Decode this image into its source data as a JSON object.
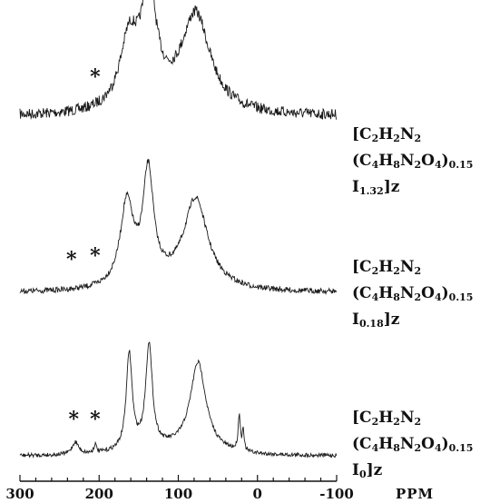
{
  "chart_data": {
    "type": "line",
    "title": "",
    "xlabel": "PPM",
    "xlim": [
      300,
      -100
    ],
    "x_ticks": [
      "300",
      "200",
      "100",
      "0",
      "-100"
    ],
    "x_tick_values": [
      300,
      200,
      100,
      0,
      -100
    ],
    "grid": false,
    "legend": "none",
    "marker_symbol": "*",
    "spectra": [
      {
        "label_lines": [
          "[C2H2N2",
          "(C4H8N2O4)0.15",
          "I1.32]z"
        ],
        "peaks": [
          {
            "ppm": 162,
            "height": 0.6
          },
          {
            "ppm": 137,
            "height": 1.0
          },
          {
            "ppm": 78,
            "height": 0.85
          }
        ],
        "asterisk_ppm": [
          205
        ]
      },
      {
        "label_lines": [
          "[C2H2N2",
          "(C4H8N2O4)0.15",
          "I0.18]z"
        ],
        "peaks": [
          {
            "ppm": 165,
            "height": 0.75
          },
          {
            "ppm": 138,
            "height": 1.0
          },
          {
            "ppm": 78,
            "height": 0.8
          }
        ],
        "asterisk_ppm": [
          235,
          205
        ]
      },
      {
        "label_lines": [
          "[C2H2N2",
          "(C4H8N2O4)0.15",
          "I0]z"
        ],
        "peaks": [
          {
            "ppm": 162,
            "height": 0.93
          },
          {
            "ppm": 137,
            "height": 1.0
          },
          {
            "ppm": 75,
            "height": 0.85
          },
          {
            "ppm": 23,
            "height": 0.35
          },
          {
            "ppm": 18,
            "height": 0.22
          },
          {
            "ppm": 230,
            "height": 0.12
          },
          {
            "ppm": 205,
            "height": 0.08
          }
        ],
        "asterisk_ppm": [
          232,
          205
        ]
      }
    ]
  }
}
